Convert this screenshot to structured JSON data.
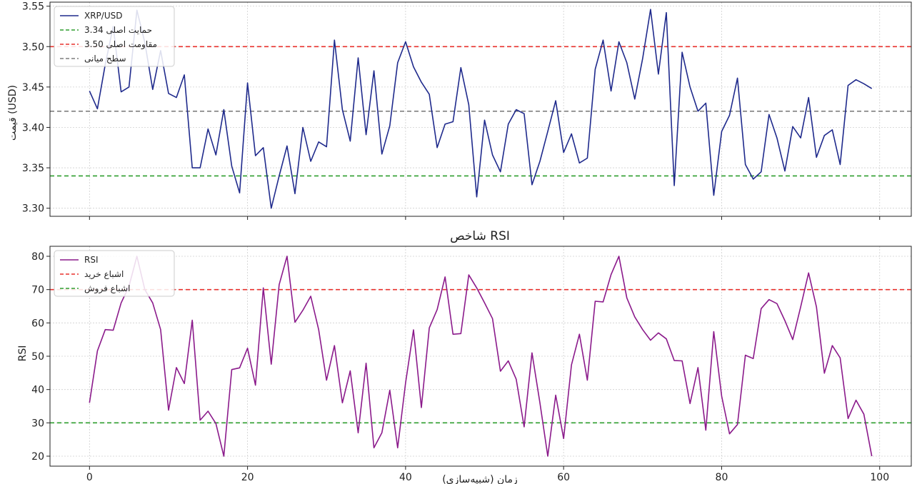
{
  "chart_data": [
    {
      "type": "line",
      "title": "",
      "xlabel": "",
      "ylabel": "قیمت (USD)",
      "xlim": [
        -5,
        104
      ],
      "ylim": [
        3.29,
        3.555
      ],
      "xticks": [
        0,
        20,
        40,
        60,
        80,
        100
      ],
      "yticks": [
        3.3,
        3.35,
        3.4,
        3.45,
        3.5,
        3.55
      ],
      "ytick_labels": [
        "3.30",
        "3.35",
        "3.40",
        "3.45",
        "3.50",
        "3.55"
      ],
      "grid": true,
      "legend_position": "top-left",
      "series": [
        {
          "name": "XRP/USD",
          "color": "#1f2a8c",
          "x": [
            0,
            1,
            2,
            3,
            4,
            5,
            6,
            7,
            8,
            9,
            10,
            11,
            12,
            13,
            14,
            15,
            16,
            17,
            18,
            19,
            20,
            21,
            22,
            23,
            24,
            25,
            26,
            27,
            28,
            29,
            30,
            31,
            32,
            33,
            34,
            35,
            36,
            37,
            38,
            39,
            40,
            41,
            42,
            43,
            44,
            45,
            46,
            47,
            48,
            49,
            50,
            51,
            52,
            53,
            54,
            55,
            56,
            57,
            58,
            59,
            60,
            61,
            62,
            63,
            64,
            65,
            66,
            67,
            68,
            69,
            70,
            71,
            72,
            73,
            74,
            75,
            76,
            77,
            78,
            79,
            80,
            81,
            82,
            83,
            84,
            85,
            86,
            87,
            88,
            89,
            90,
            91,
            92,
            93,
            94,
            95,
            96,
            97,
            98,
            99
          ],
          "y": [
            3.445,
            3.423,
            3.478,
            3.525,
            3.444,
            3.45,
            3.545,
            3.505,
            3.447,
            3.495,
            3.442,
            3.437,
            3.465,
            3.35,
            3.35,
            3.398,
            3.366,
            3.422,
            3.352,
            3.319,
            3.455,
            3.365,
            3.375,
            3.3,
            3.34,
            3.377,
            3.318,
            3.4,
            3.358,
            3.382,
            3.376,
            3.508,
            3.422,
            3.383,
            3.486,
            3.391,
            3.47,
            3.367,
            3.402,
            3.48,
            3.506,
            3.475,
            3.456,
            3.441,
            3.375,
            3.404,
            3.407,
            3.474,
            3.428,
            3.314,
            3.409,
            3.366,
            3.345,
            3.404,
            3.422,
            3.417,
            3.329,
            3.358,
            3.395,
            3.433,
            3.369,
            3.392,
            3.356,
            3.362,
            3.472,
            3.508,
            3.445,
            3.506,
            3.48,
            3.435,
            3.485,
            3.546,
            3.466,
            3.542,
            3.328,
            3.493,
            3.45,
            3.42,
            3.43,
            3.316,
            3.395,
            3.415,
            3.461,
            3.354,
            3.336,
            3.345,
            3.416,
            3.387,
            3.346,
            3.401,
            3.387,
            3.437,
            3.363,
            3.39,
            3.397,
            3.354,
            3.452,
            3.459,
            3.454,
            3.448
          ]
        },
        {
          "name": "حمایت اصلی 3.34",
          "color": "#2e9e2e",
          "style": "dashed",
          "y_const": 3.34
        },
        {
          "name": "مقاومت اصلی 3.50",
          "color": "#e8312c",
          "style": "dashed",
          "y_const": 3.5
        },
        {
          "name": "سطح میانی",
          "color": "#7f7f7f",
          "style": "dashed",
          "y_const": 3.42
        }
      ]
    },
    {
      "type": "line",
      "title": "شاخص RSI",
      "xlabel": "زمان (شبیه‌سازی)",
      "ylabel": "RSI",
      "xlim": [
        -5,
        104
      ],
      "ylim": [
        17,
        83
      ],
      "xticks": [
        0,
        20,
        40,
        60,
        80,
        100
      ],
      "yticks": [
        20,
        30,
        40,
        50,
        60,
        70,
        80
      ],
      "grid": true,
      "legend_position": "top-left",
      "series": [
        {
          "name": "RSI",
          "color": "#8b1a8b",
          "x": [
            0,
            1,
            2,
            3,
            4,
            5,
            6,
            7,
            8,
            9,
            10,
            11,
            12,
            13,
            14,
            15,
            16,
            17,
            18,
            19,
            20,
            21,
            22,
            23,
            24,
            25,
            26,
            27,
            28,
            29,
            30,
            31,
            32,
            33,
            34,
            35,
            36,
            37,
            38,
            39,
            40,
            41,
            42,
            43,
            44,
            45,
            46,
            47,
            48,
            49,
            50,
            51,
            52,
            53,
            54,
            55,
            56,
            57,
            58,
            59,
            60,
            61,
            62,
            63,
            64,
            65,
            66,
            67,
            68,
            69,
            70,
            71,
            72,
            73,
            74,
            75,
            76,
            77,
            78,
            79,
            80,
            81,
            82,
            83,
            84,
            85,
            86,
            87,
            88,
            89,
            90,
            91,
            92,
            93,
            94,
            95,
            96,
            97,
            98,
            99
          ],
          "y": [
            36,
            51.6,
            58,
            57.8,
            66,
            71,
            80,
            70,
            66,
            58,
            33.8,
            46.6,
            41.8,
            60.8,
            30.8,
            33.5,
            29.8,
            20,
            46,
            46.5,
            52.4,
            41.3,
            70.5,
            47.6,
            71.5,
            80,
            60.2,
            63.8,
            68,
            58,
            42.8,
            53.2,
            36,
            45.6,
            27,
            47.9,
            22.5,
            27,
            39.8,
            22.5,
            42,
            57.9,
            34.6,
            58.5,
            64,
            73.8,
            56.6,
            56.8,
            74.4,
            70.5,
            66,
            61.3,
            45.5,
            48.6,
            43.1,
            28.8,
            51,
            36,
            20,
            38.3,
            25.3,
            47.4,
            56.6,
            42.8,
            66.5,
            66.3,
            74.5,
            80,
            67.5,
            61.8,
            58,
            54.8,
            57,
            55.2,
            48.7,
            48.6,
            35.8,
            46.6,
            27.8,
            57.4,
            38,
            26.7,
            29.5,
            50.3,
            49.3,
            64.3,
            67,
            65.8,
            60.7,
            55,
            64.8,
            75,
            64.8,
            44.9,
            53.2,
            49.5,
            31.3,
            36.8,
            32.6,
            20
          ]
        },
        {
          "name": "اشباع خرید",
          "color": "#e8312c",
          "style": "dashed",
          "y_const": 70
        },
        {
          "name": "اشباع فروش",
          "color": "#2e9e2e",
          "style": "dashed",
          "y_const": 30
        }
      ]
    }
  ]
}
